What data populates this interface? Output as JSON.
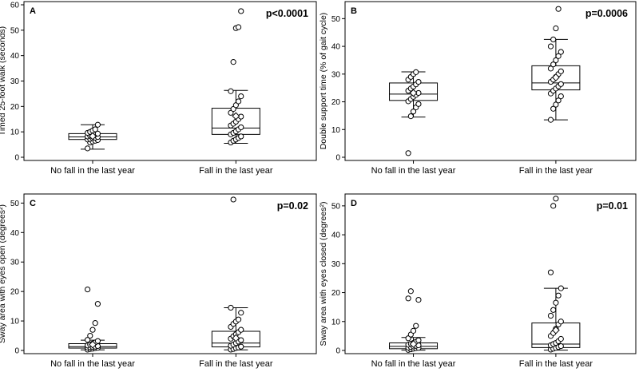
{
  "chart_data": [
    {
      "type": "box",
      "panel_label": "A",
      "ylabel": "Timed 25-foot walk (seconds)",
      "annotation": "p<0.0001",
      "categories": [
        "No fall in the last year",
        "Fall in the last year"
      ],
      "ylim": [
        0,
        60
      ],
      "yticks": [
        0,
        10,
        20,
        30,
        40,
        50,
        60
      ],
      "boxes": [
        {
          "category": "No fall in the last year",
          "q1": 7.0,
          "median": 8.0,
          "q3": 9.3,
          "whisker_low": 3.2,
          "whisker_high": 12.8,
          "mean": 8.3
        },
        {
          "category": "Fall in the last year",
          "q1": 9.0,
          "median": 11.5,
          "q3": 19.3,
          "whisker_low": 5.5,
          "whisker_high": 26.3,
          "mean": 16.2
        }
      ],
      "points": [
        {
          "category": "No fall in the last year",
          "values": [
            3.5,
            5.8,
            6.2,
            6.5,
            6.8,
            7.0,
            7.2,
            7.5,
            7.7,
            8.0,
            8.2,
            8.5,
            8.8,
            9.0,
            9.3,
            9.6,
            10.0,
            10.5,
            11.0,
            12.8
          ]
        },
        {
          "category": "Fall in the last year",
          "values": [
            5.8,
            6.5,
            7.0,
            7.6,
            8.2,
            9.0,
            9.6,
            10.2,
            11.0,
            11.8,
            12.5,
            13.2,
            14.0,
            15.0,
            16.0,
            17.5,
            19.0,
            20.5,
            22.0,
            24.0,
            26.0,
            37.5,
            50.8,
            51.2,
            57.5
          ]
        }
      ]
    },
    {
      "type": "box",
      "panel_label": "B",
      "ylabel": "Double support time (% of gait cycle)",
      "annotation": "p=0.0006",
      "categories": [
        "No fall in the last year",
        "Fall in the last year"
      ],
      "ylim": [
        0,
        55
      ],
      "yticks": [
        0,
        10,
        20,
        30,
        40,
        50
      ],
      "boxes": [
        {
          "category": "No fall in the last year",
          "q1": 20.5,
          "median": 22.8,
          "q3": 26.8,
          "whisker_low": 14.5,
          "whisker_high": 30.8,
          "mean": 23.2
        },
        {
          "category": "Fall in the last year",
          "q1": 24.3,
          "median": 26.8,
          "q3": 33.0,
          "whisker_low": 13.5,
          "whisker_high": 42.5,
          "mean": 28.8
        }
      ],
      "points": [
        {
          "category": "No fall in the last year",
          "values": [
            1.5,
            14.8,
            16.5,
            18.0,
            19.2,
            20.2,
            21.0,
            21.8,
            22.5,
            23.2,
            24.0,
            24.8,
            25.5,
            26.3,
            27.2,
            28.0,
            29.0,
            30.0,
            30.7
          ]
        },
        {
          "category": "Fall in the last year",
          "values": [
            13.5,
            17.5,
            19.0,
            20.5,
            22.0,
            23.0,
            24.0,
            24.8,
            25.6,
            26.4,
            27.2,
            28.0,
            29.0,
            30.0,
            31.0,
            32.0,
            33.5,
            35.0,
            36.5,
            38.0,
            40.0,
            42.5,
            46.5,
            53.5
          ]
        }
      ]
    },
    {
      "type": "box",
      "panel_label": "C",
      "ylabel": "Sway area with eyes open (degrees²)",
      "annotation": "p=0.02",
      "categories": [
        "No fall in the last year",
        "Fall in the last year"
      ],
      "ylim": [
        0,
        52
      ],
      "yticks": [
        0,
        10,
        20,
        30,
        40,
        50
      ],
      "boxes": [
        {
          "category": "No fall in the last year",
          "q1": 0.8,
          "median": 1.3,
          "q3": 2.3,
          "whisker_low": 0.2,
          "whisker_high": 3.5,
          "mean": 2.0
        },
        {
          "category": "Fall in the last year",
          "q1": 1.2,
          "median": 2.5,
          "q3": 6.5,
          "whisker_low": 0.2,
          "whisker_high": 14.5,
          "mean": 4.2
        }
      ],
      "points": [
        {
          "category": "No fall in the last year",
          "values": [
            0.3,
            0.5,
            0.6,
            0.8,
            0.9,
            1.0,
            1.1,
            1.2,
            1.3,
            1.5,
            1.7,
            2.0,
            2.3,
            2.7,
            3.2,
            3.6,
            5.0,
            7.0,
            9.3,
            15.8,
            20.7
          ]
        },
        {
          "category": "Fall in the last year",
          "values": [
            0.3,
            0.5,
            0.8,
            1.0,
            1.3,
            1.6,
            2.0,
            2.5,
            3.0,
            3.5,
            4.0,
            4.8,
            5.5,
            6.2,
            7.0,
            8.0,
            9.0,
            9.8,
            10.5,
            12.8,
            14.5,
            51.2
          ]
        }
      ]
    },
    {
      "type": "box",
      "panel_label": "D",
      "ylabel": "Sway area with eyes closed (degrees²)",
      "annotation": "p=0.01",
      "categories": [
        "No fall in the last year",
        "Fall in the last year"
      ],
      "ylim": [
        0,
        53
      ],
      "yticks": [
        0,
        10,
        20,
        30,
        40,
        50
      ],
      "boxes": [
        {
          "category": "No fall in the last year",
          "q1": 0.6,
          "median": 1.4,
          "q3": 2.6,
          "whisker_low": 0.1,
          "whisker_high": 4.5,
          "mean": 2.2
        },
        {
          "category": "Fall in the last year",
          "q1": 1.0,
          "median": 2.2,
          "q3": 9.5,
          "whisker_low": 0.1,
          "whisker_high": 21.5,
          "mean": 7.0
        }
      ],
      "points": [
        {
          "category": "No fall in the last year",
          "values": [
            0.2,
            0.4,
            0.6,
            0.8,
            0.9,
            1.0,
            1.2,
            1.4,
            1.6,
            1.8,
            2.0,
            2.3,
            2.6,
            3.0,
            3.5,
            4.2,
            5.5,
            6.8,
            8.5,
            17.5,
            18.0,
            20.5
          ]
        },
        {
          "category": "Fall in the last year",
          "values": [
            0.3,
            0.6,
            0.9,
            1.2,
            1.5,
            1.8,
            2.2,
            2.6,
            3.2,
            4.0,
            5.0,
            6.0,
            7.5,
            9.0,
            10.0,
            12.0,
            14.0,
            16.5,
            19.0,
            21.5,
            27.0,
            50.0,
            52.5
          ]
        }
      ]
    }
  ]
}
